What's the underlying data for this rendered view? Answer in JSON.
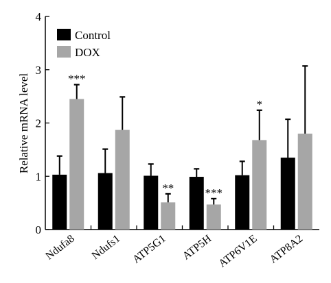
{
  "chart_data": {
    "type": "bar",
    "title": "",
    "xlabel": "",
    "ylabel": "Relative mRNA level",
    "ylim": [
      0,
      4
    ],
    "yticks": [
      0,
      1,
      2,
      3,
      4
    ],
    "categories": [
      "Ndufa8",
      "Ndufs1",
      "ATP5G1",
      "ATP5H",
      "ATP6V1E",
      "ATP8A2"
    ],
    "series": [
      {
        "name": "Control",
        "color": "#000000",
        "values": [
          1.03,
          1.06,
          1.01,
          0.99,
          1.02,
          1.35
        ],
        "errors": [
          0.35,
          0.45,
          0.22,
          0.15,
          0.26,
          0.72
        ]
      },
      {
        "name": "DOX",
        "color": "#a6a6a6",
        "values": [
          2.45,
          1.87,
          0.51,
          0.47,
          1.68,
          1.8
        ],
        "errors": [
          0.27,
          0.62,
          0.16,
          0.11,
          0.56,
          1.27
        ]
      }
    ],
    "annotations": [
      {
        "category": "Ndufa8",
        "series": "DOX",
        "text": "***"
      },
      {
        "category": "ATP5G1",
        "series": "DOX",
        "text": "**"
      },
      {
        "category": "ATP5H",
        "series": "DOX",
        "text": "***"
      },
      {
        "category": "ATP6V1E",
        "series": "DOX",
        "text": "*"
      }
    ],
    "legend": {
      "position": "top-left"
    },
    "grid": false
  }
}
